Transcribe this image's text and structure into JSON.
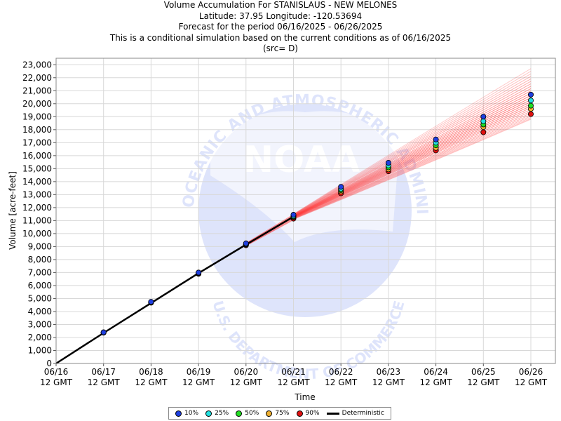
{
  "header": {
    "title": "Volume Accumulation For STANISLAUS - NEW MELONES",
    "location": "Latitude: 37.95 Longitude: -120.53694",
    "period": "Forecast for the period 06/16/2025 - 06/26/2025",
    "note": "This is a conditional simulation based on the current conditions as of 06/16/2025",
    "source": "(src= D)"
  },
  "watermark": {
    "center_text": "NOAA",
    "ring_top": "NATIONAL OCEANIC AND ATMOSPHERIC ADMINISTRATION",
    "ring_bottom": "U.S. DEPARTMENT OF COMMERCE"
  },
  "chart_data": {
    "type": "line",
    "xlabel": "Time",
    "ylabel": "Volume [acre-feet]",
    "x_ticks": [
      "06/16\n12 GMT",
      "06/17\n12 GMT",
      "06/18\n12 GMT",
      "06/19\n12 GMT",
      "06/20\n12 GMT",
      "06/21\n12 GMT",
      "06/22\n12 GMT",
      "06/23\n12 GMT",
      "06/24\n12 GMT",
      "06/25\n12 GMT",
      "06/26\n12 GMT"
    ],
    "ylim": [
      0,
      23500
    ],
    "y_ticks": [
      0,
      1000,
      2000,
      3000,
      4000,
      5000,
      6000,
      7000,
      8000,
      9000,
      10000,
      11000,
      12000,
      13000,
      14000,
      15000,
      16000,
      17000,
      18000,
      19000,
      20000,
      21000,
      22000,
      23000
    ],
    "deterministic": {
      "name": "Deterministic",
      "x": [
        "06/16",
        "06/17",
        "06/18",
        "06/19",
        "06/20",
        "06/21"
      ],
      "values": [
        0,
        2350,
        4650,
        6950,
        9150,
        11300
      ]
    },
    "series": [
      {
        "name": "10%",
        "color": "#1f3fe0",
        "x": [
          "06/17",
          "06/18",
          "06/19",
          "06/20",
          "06/21",
          "06/22",
          "06/23",
          "06/24",
          "06/25",
          "06/26"
        ],
        "values": [
          2400,
          4750,
          7000,
          9250,
          11450,
          13600,
          15450,
          17250,
          19000,
          20700
        ]
      },
      {
        "name": "25%",
        "color": "#22e0e0",
        "x": [
          "06/17",
          "06/18",
          "06/19",
          "06/20",
          "06/21",
          "06/22",
          "06/23",
          "06/24",
          "06/25",
          "06/26"
        ],
        "values": [
          2400,
          4730,
          6980,
          9200,
          11350,
          13450,
          15250,
          17000,
          18650,
          20250
        ]
      },
      {
        "name": "50%",
        "color": "#22dd22",
        "x": [
          "06/17",
          "06/18",
          "06/19",
          "06/20",
          "06/21",
          "06/22",
          "06/23",
          "06/24",
          "06/25",
          "06/26"
        ],
        "values": [
          2390,
          4710,
          6960,
          9170,
          11300,
          13350,
          15100,
          16800,
          18400,
          19850
        ]
      },
      {
        "name": "75%",
        "color": "#f0b030",
        "x": [
          "06/17",
          "06/18",
          "06/19",
          "06/20",
          "06/21",
          "06/22",
          "06/23",
          "06/24",
          "06/25",
          "06/26"
        ],
        "values": [
          2380,
          4700,
          6940,
          9150,
          11250,
          13250,
          14950,
          16600,
          18200,
          19600
        ]
      },
      {
        "name": "90%",
        "color": "#e01010",
        "x": [
          "06/17",
          "06/18",
          "06/19",
          "06/20",
          "06/21",
          "06/22",
          "06/23",
          "06/24",
          "06/25",
          "06/26"
        ],
        "values": [
          2370,
          4680,
          6900,
          9100,
          11150,
          13100,
          14800,
          16400,
          17800,
          19200
        ]
      }
    ],
    "ensemble_band": {
      "x": [
        "06/21",
        "06/26"
      ],
      "low": [
        11100,
        18800
      ],
      "high": [
        11500,
        22700
      ]
    },
    "grid": true,
    "legend_position": "bottom-center"
  }
}
